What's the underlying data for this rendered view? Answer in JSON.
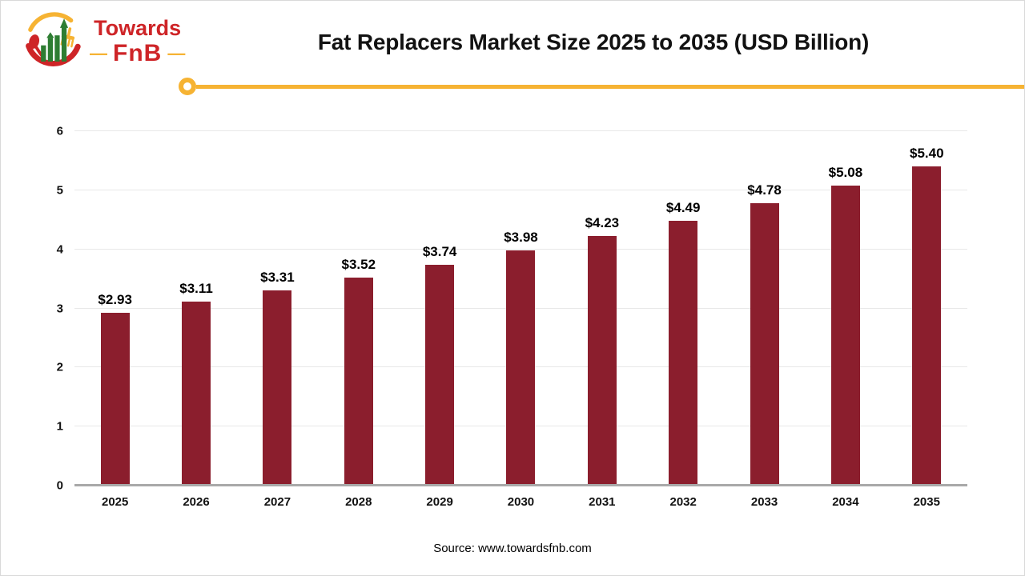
{
  "page": {
    "title": "Fat Replacers Market Size 2025 to 2035 (USD Billion)",
    "source": "Source: www.towardsfnb.com"
  },
  "logo": {
    "brand_top": "Towards",
    "brand_bottom": "FnB",
    "dash": "—",
    "icon": "towardsfnb-logo",
    "colors": {
      "red": "#ce2427",
      "green": "#2e7d32",
      "gold": "#f6b333"
    }
  },
  "divider": {
    "color": "#f6b333",
    "cap": "ring"
  },
  "chart_data": {
    "type": "bar",
    "title": "Fat Replacers Market Size 2025 to 2035 (USD Billion)",
    "categories": [
      "2025",
      "2026",
      "2027",
      "2028",
      "2029",
      "2030",
      "2031",
      "2032",
      "2033",
      "2034",
      "2035"
    ],
    "values": [
      2.93,
      3.11,
      3.31,
      3.52,
      3.74,
      3.98,
      4.23,
      4.49,
      4.78,
      5.08,
      5.4
    ],
    "labels": [
      "$2.93",
      "$3.11",
      "$3.31",
      "$3.52",
      "$3.74",
      "$3.98",
      "$4.23",
      "$4.49",
      "$4.78",
      "$5.08",
      "$5.40"
    ],
    "xlabel": "",
    "ylabel": "",
    "ylim": [
      0,
      6
    ],
    "yticks": [
      0,
      1,
      2,
      3,
      4,
      5,
      6
    ],
    "grid": "horizontal",
    "legend": "none",
    "bar_color": "#8b1e2d",
    "gridline_color": "#e8e8e8",
    "axis_line_color": "#a9a9a9"
  }
}
